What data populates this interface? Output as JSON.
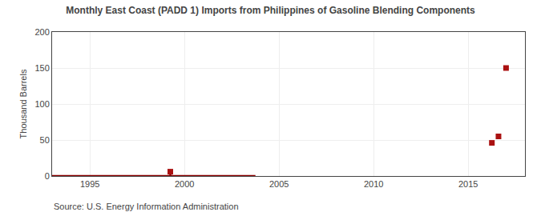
{
  "chart_data": {
    "type": "line",
    "title": "Monthly East Coast (PADD 1) Imports from Philippines of Gasoline Blending Components",
    "ylabel": "Thousand Barrels",
    "annotations": [
      "Source: U.S. Energy Information Administration"
    ],
    "xlim": [
      1993.0,
      2018.0
    ],
    "xticks": [
      1995,
      2000,
      2005,
      2010,
      2015
    ],
    "ylim": [
      0,
      200
    ],
    "yticks": [
      0,
      50,
      100,
      150,
      200
    ],
    "grid": true,
    "series": [
      {
        "type": "line",
        "color": "#8b0000",
        "line_style": "solid",
        "x": [
          1993.0,
          2003.75
        ],
        "values": [
          0,
          0
        ]
      },
      {
        "type": "line",
        "color": "#8b0000",
        "line_style": "solid",
        "x": [
          1999.25,
          1999.25
        ],
        "values": [
          0,
          6
        ]
      },
      {
        "type": "scatter",
        "color": "#aa1111",
        "marker": "square",
        "x": [
          1999.25
        ],
        "values": [
          6
        ]
      },
      {
        "type": "scatter",
        "color": "#aa1111",
        "marker": "square",
        "x": [
          2016.25,
          2016.6,
          2017.0
        ],
        "values": [
          46,
          55,
          150
        ]
      }
    ]
  }
}
